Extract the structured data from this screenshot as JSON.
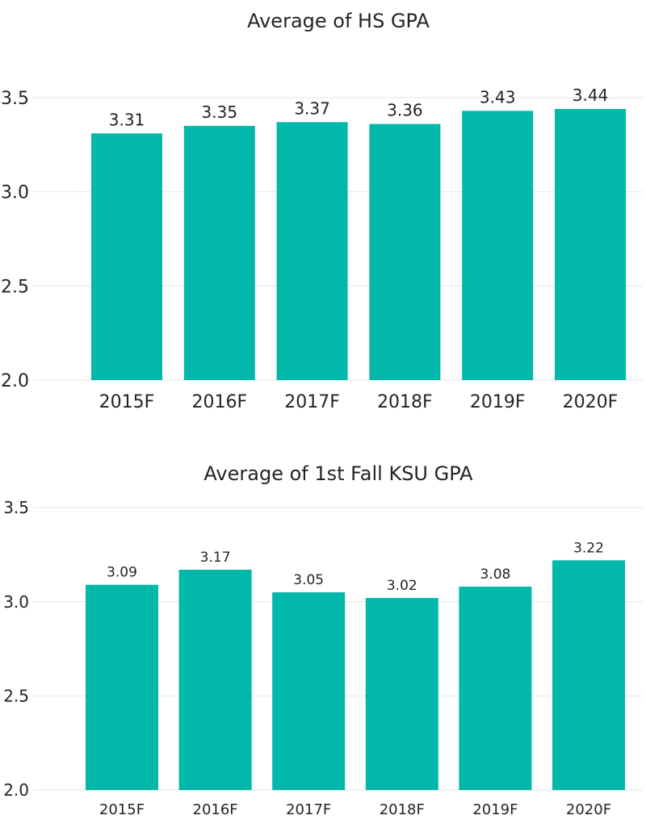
{
  "chart_data": [
    {
      "type": "bar",
      "title": "Average of HS GPA",
      "categories": [
        "2015F",
        "2016F",
        "2017F",
        "2018F",
        "2019F",
        "2020F"
      ],
      "values": [
        3.31,
        3.35,
        3.37,
        3.36,
        3.43,
        3.44
      ],
      "value_labels": [
        "3.31",
        "3.35",
        "3.37",
        "3.36",
        "3.43",
        "3.44"
      ],
      "y_ticks": [
        "2.0",
        "2.5",
        "3.0",
        "3.5"
      ],
      "xlabel": "",
      "ylabel": "",
      "ylim": [
        2.0,
        3.5
      ],
      "grid": true,
      "bar_color": "#01b8aa"
    },
    {
      "type": "bar",
      "title": "Average of 1st Fall KSU GPA",
      "categories": [
        "2015F",
        "2016F",
        "2017F",
        "2018F",
        "2019F",
        "2020F"
      ],
      "values": [
        3.09,
        3.17,
        3.05,
        3.02,
        3.08,
        3.22
      ],
      "value_labels": [
        "3.09",
        "3.17",
        "3.05",
        "3.02",
        "3.08",
        "3.22"
      ],
      "y_ticks": [
        "2.0",
        "2.5",
        "3.0",
        "3.5"
      ],
      "xlabel": "",
      "ylabel": "",
      "ylim": [
        2.0,
        3.5
      ],
      "grid": true,
      "bar_color": "#01b8aa"
    }
  ]
}
